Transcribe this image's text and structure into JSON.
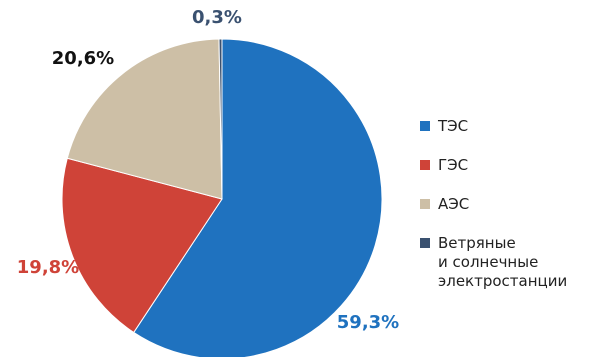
{
  "chart_data": {
    "type": "pie",
    "slices": [
      {
        "label": "ТЭС",
        "value": 59.3,
        "value_label": "59,3%",
        "color": "#1f72bf"
      },
      {
        "label": "ГЭС",
        "value": 19.8,
        "value_label": "19,8%",
        "color": "#cf4338"
      },
      {
        "label": "АЭС",
        "value": 20.6,
        "value_label": "20,6%",
        "color": "#cdbfa6"
      },
      {
        "label": "Ветряные\nи солнечные\nэлектростанции",
        "value": 0.3,
        "value_label": "0,3%",
        "color": "#3a5170"
      }
    ],
    "label_colors": [
      "#1f72bf",
      "#cf4338",
      "#111111",
      "#3a5170"
    ],
    "legend_placement": "right",
    "title": ""
  }
}
